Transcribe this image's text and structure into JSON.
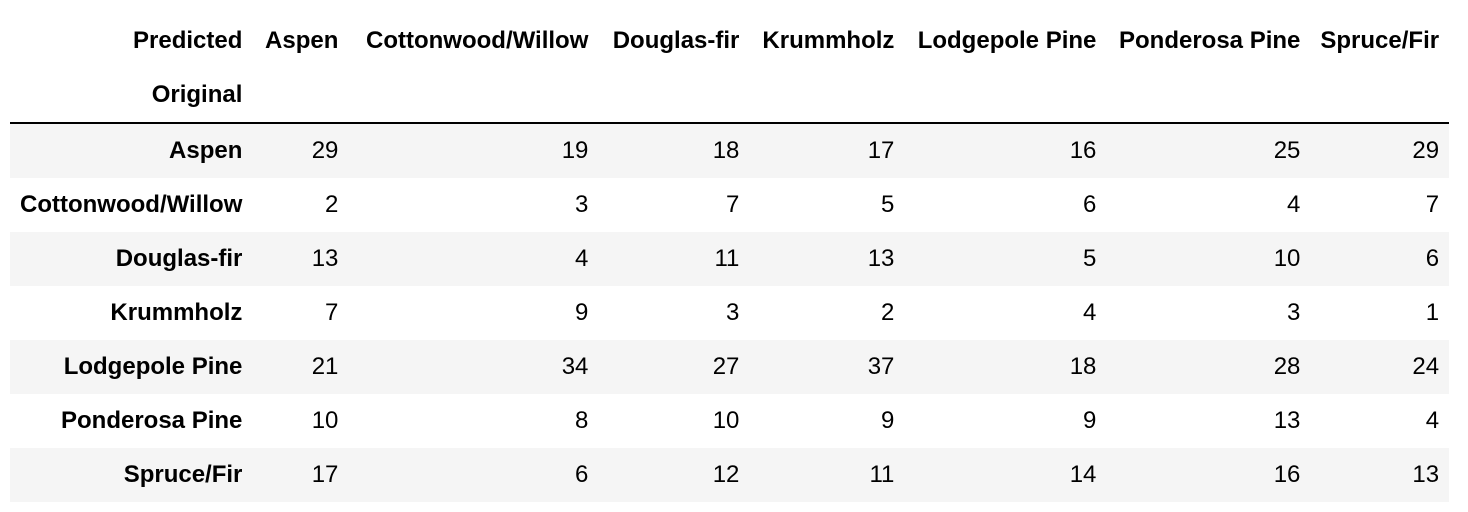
{
  "table": {
    "columns_axis_label": "Predicted",
    "index_axis_label": "Original",
    "columns": [
      "Aspen",
      "Cottonwood/Willow",
      "Douglas-fir",
      "Krummholz",
      "Lodgepole Pine",
      "Ponderosa Pine",
      "Spruce/Fir"
    ],
    "rows": [
      {
        "label": "Aspen",
        "values": [
          "29",
          "19",
          "18",
          "17",
          "16",
          "25",
          "29"
        ]
      },
      {
        "label": "Cottonwood/Willow",
        "values": [
          "2",
          "3",
          "7",
          "5",
          "6",
          "4",
          "7"
        ]
      },
      {
        "label": "Douglas-fir",
        "values": [
          "13",
          "4",
          "11",
          "13",
          "5",
          "10",
          "6"
        ]
      },
      {
        "label": "Krummholz",
        "values": [
          "7",
          "9",
          "3",
          "2",
          "4",
          "3",
          "1"
        ]
      },
      {
        "label": "Lodgepole Pine",
        "values": [
          "21",
          "34",
          "27",
          "37",
          "18",
          "28",
          "24"
        ]
      },
      {
        "label": "Ponderosa Pine",
        "values": [
          "10",
          "8",
          "10",
          "9",
          "9",
          "13",
          "4"
        ]
      },
      {
        "label": "Spruce/Fir",
        "values": [
          "17",
          "6",
          "12",
          "11",
          "14",
          "16",
          "13"
        ]
      }
    ]
  }
}
